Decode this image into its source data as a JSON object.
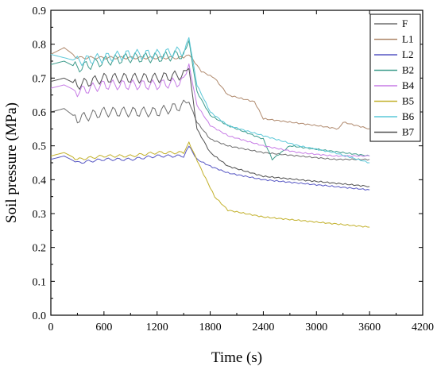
{
  "chart_data": {
    "type": "line",
    "title": "",
    "xlabel": "Time (s)",
    "ylabel": "Soil pressure (MPa)",
    "xlim": [
      0,
      4200
    ],
    "ylim": [
      0,
      0.9
    ],
    "x_ticks": [
      "0",
      "600",
      "1200",
      "1800",
      "2400",
      "3000",
      "3600",
      "4200"
    ],
    "y_ticks": [
      "0.0",
      "0.1",
      "0.2",
      "0.3",
      "0.4",
      "0.5",
      "0.6",
      "0.7",
      "0.8",
      "0.9"
    ],
    "grid": false,
    "legend_position": "top-right",
    "series": [
      {
        "name": "F",
        "color": "#6e6e6e",
        "x": [
          0,
          150,
          300,
          600,
          900,
          1200,
          1500,
          1560,
          1650,
          1800,
          2000,
          2400,
          2800,
          3200,
          3600
        ],
        "y": [
          0.6,
          0.61,
          0.58,
          0.6,
          0.6,
          0.6,
          0.62,
          0.63,
          0.57,
          0.52,
          0.5,
          0.48,
          0.47,
          0.46,
          0.46
        ]
      },
      {
        "name": "L1",
        "color": "#b08a6e",
        "x": [
          0,
          150,
          300,
          600,
          900,
          1200,
          1500,
          1560,
          1700,
          1850,
          2000,
          2300,
          2400,
          2700,
          3000,
          3250,
          3300,
          3600
        ],
        "y": [
          0.77,
          0.79,
          0.76,
          0.76,
          0.76,
          0.76,
          0.76,
          0.77,
          0.72,
          0.7,
          0.65,
          0.63,
          0.58,
          0.57,
          0.56,
          0.55,
          0.57,
          0.55
        ]
      },
      {
        "name": "L2",
        "color": "#5757c4",
        "x": [
          0,
          150,
          300,
          600,
          900,
          1200,
          1500,
          1560,
          1650,
          1800,
          2000,
          2400,
          2800,
          3200,
          3600
        ],
        "y": [
          0.46,
          0.47,
          0.45,
          0.46,
          0.46,
          0.47,
          0.47,
          0.5,
          0.46,
          0.44,
          0.42,
          0.4,
          0.39,
          0.38,
          0.37
        ]
      },
      {
        "name": "B2",
        "color": "#3e9c8c",
        "x": [
          0,
          150,
          300,
          600,
          900,
          1200,
          1500,
          1560,
          1650,
          1800,
          2000,
          2400,
          2500,
          2700,
          3000,
          3600
        ],
        "y": [
          0.74,
          0.75,
          0.73,
          0.75,
          0.76,
          0.76,
          0.77,
          0.81,
          0.66,
          0.59,
          0.56,
          0.52,
          0.46,
          0.5,
          0.49,
          0.47
        ]
      },
      {
        "name": "B4",
        "color": "#c77ce6",
        "x": [
          0,
          150,
          300,
          600,
          900,
          1200,
          1500,
          1560,
          1650,
          1800,
          2000,
          2400,
          2800,
          3200,
          3600
        ],
        "y": [
          0.67,
          0.68,
          0.66,
          0.68,
          0.68,
          0.68,
          0.69,
          0.74,
          0.62,
          0.56,
          0.53,
          0.5,
          0.48,
          0.47,
          0.47
        ]
      },
      {
        "name": "B5",
        "color": "#c2b02a",
        "x": [
          0,
          150,
          300,
          600,
          900,
          1200,
          1500,
          1560,
          1700,
          1850,
          2000,
          2400,
          2800,
          3200,
          3600
        ],
        "y": [
          0.47,
          0.48,
          0.46,
          0.47,
          0.47,
          0.48,
          0.48,
          0.51,
          0.43,
          0.35,
          0.31,
          0.29,
          0.28,
          0.27,
          0.26
        ]
      },
      {
        "name": "B6",
        "color": "#5cc8d8",
        "x": [
          0,
          150,
          300,
          600,
          900,
          1200,
          1500,
          1560,
          1650,
          1800,
          2000,
          2400,
          2800,
          3200,
          3600
        ],
        "y": [
          0.77,
          0.76,
          0.75,
          0.76,
          0.77,
          0.77,
          0.78,
          0.82,
          0.68,
          0.6,
          0.56,
          0.53,
          0.5,
          0.48,
          0.45
        ]
      },
      {
        "name": "B7",
        "color": "#505050",
        "x": [
          0,
          150,
          300,
          600,
          900,
          1200,
          1500,
          1560,
          1650,
          1800,
          2000,
          2400,
          2800,
          3200,
          3600
        ],
        "y": [
          0.69,
          0.7,
          0.68,
          0.7,
          0.7,
          0.7,
          0.71,
          0.73,
          0.55,
          0.48,
          0.44,
          0.41,
          0.4,
          0.39,
          0.38
        ]
      }
    ]
  }
}
